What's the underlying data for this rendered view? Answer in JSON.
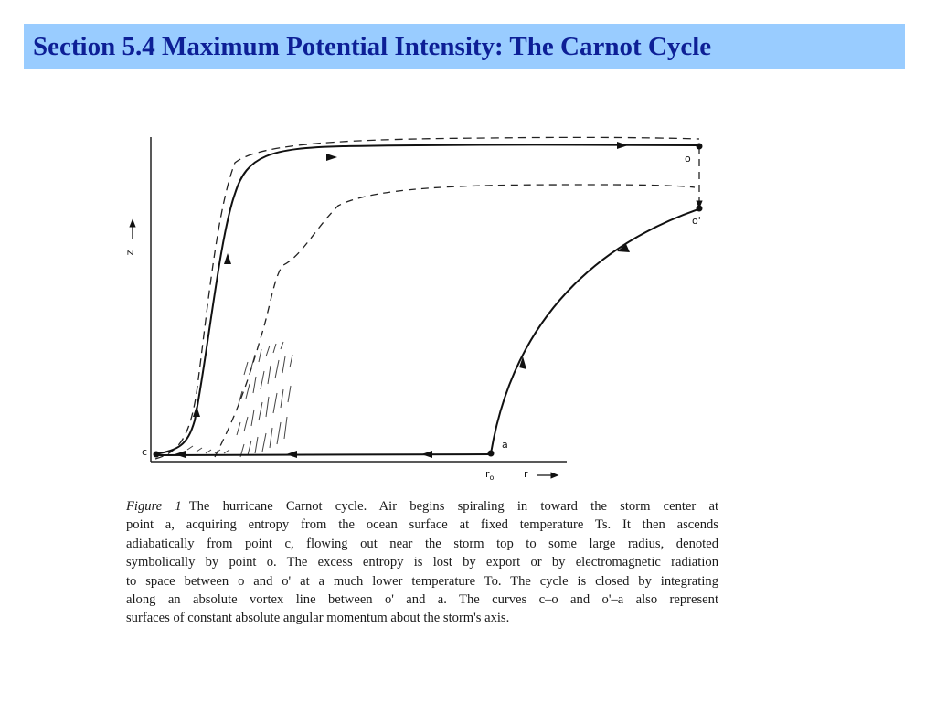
{
  "slide": {
    "title": "Section 5.4 Maximum Potential Intensity: The Carnot Cycle",
    "title_bar_color": "#99ccff",
    "title_text_color": "#0d1f96"
  },
  "figure": {
    "labels": {
      "point_o": "o",
      "point_o_prime": "o'",
      "point_a": "a",
      "point_c": "c",
      "r0": "r",
      "r0_sub": "o",
      "r_axis": "r",
      "z_axis": "z"
    }
  },
  "caption": {
    "figure_label": "Figure 1",
    "lines": [
      "The hurricane Carnot cycle. Air begins spiraling in toward the storm center at",
      "point a, acquiring entropy from the ocean surface at fixed temperature Ts. It then ascends",
      "adiabatically from point c, flowing out near the storm top to some large radius, denoted",
      "symbolically by point o. The excess entropy is lost by export or by electromagnetic radiation",
      "to space between o and o' at a much lower temperature To. The cycle is closed by integrating",
      "along an absolute vortex line between o' and a. The curves c–o and o'–a also represent",
      "surfaces of constant absolute angular momentum about the storm's axis."
    ]
  }
}
